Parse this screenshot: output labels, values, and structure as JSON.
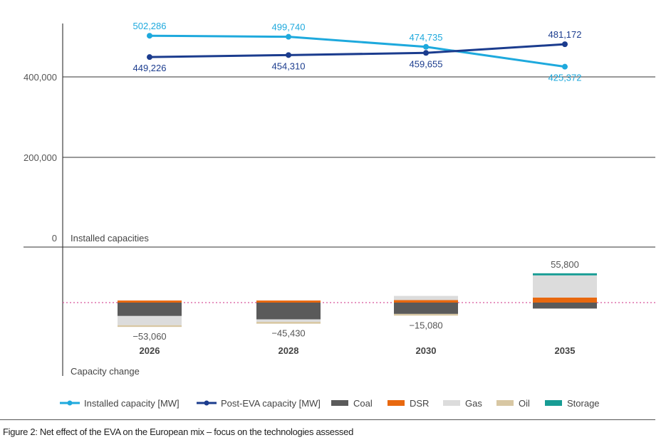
{
  "caption": "Figure 2: Net effect of the EVA on the European mix – focus on the technologies assessed",
  "chart_data": [
    {
      "type": "line",
      "panel_label": "Installed capacities",
      "categories": [
        "2026",
        "2028",
        "2030",
        "2035"
      ],
      "yticks": [
        "0",
        "200,000",
        "400,000"
      ],
      "ytick_values": [
        0,
        200000,
        400000
      ],
      "grid": true,
      "series": [
        {
          "name": "Installed capacity [MW]",
          "color": "#1ea9dd",
          "values": [
            502286,
            499740,
            474735,
            425372
          ],
          "labels": [
            "502,286",
            "499,740",
            "474,735",
            "425,372"
          ]
        },
        {
          "name": "Post-EVA capacity [MW]",
          "color": "#1b3c8e",
          "values": [
            449226,
            454310,
            459655,
            481172
          ],
          "labels": [
            "449,226",
            "454,310",
            "459,655",
            "481,172"
          ]
        }
      ]
    },
    {
      "type": "bar",
      "stacked": true,
      "panel_label": "Capacity change",
      "categories": [
        "2026",
        "2028",
        "2030",
        "2035"
      ],
      "net_values": [
        -53060,
        -45430,
        -15080,
        55800
      ],
      "net_labels": [
        "−53,060",
        "−45,430",
        "−15,080",
        "55,800"
      ],
      "series": [
        {
          "name": "Coal",
          "color": "#5a5a5a",
          "values": [
            -32000,
            -40000,
            -27000,
            -14200
          ]
        },
        {
          "name": "DSR",
          "color": "#e8680f",
          "values": [
            5000,
            5000,
            6000,
            12000
          ]
        },
        {
          "name": "Gas",
          "color": "#dcdcdc",
          "values": [
            -22000,
            -6000,
            10000,
            53000
          ]
        },
        {
          "name": "Oil",
          "color": "#d8c7a3",
          "values": [
            -4060,
            -4430,
            -4080,
            0
          ]
        },
        {
          "name": "Storage",
          "color": "#179c94",
          "values": [
            0,
            0,
            0,
            5000
          ]
        }
      ]
    }
  ],
  "legend": [
    {
      "label": "Installed capacity [MW]",
      "kind": "line",
      "color": "#1ea9dd"
    },
    {
      "label": "Post-EVA capacity [MW]",
      "kind": "line",
      "color": "#1b3c8e"
    },
    {
      "label": "Coal",
      "kind": "box",
      "color": "#5a5a5a"
    },
    {
      "label": "DSR",
      "kind": "box",
      "color": "#e8680f"
    },
    {
      "label": "Gas",
      "kind": "box",
      "color": "#dcdcdc"
    },
    {
      "label": "Oil",
      "kind": "box",
      "color": "#d8c7a3"
    },
    {
      "label": "Storage",
      "kind": "box",
      "color": "#179c94"
    }
  ]
}
